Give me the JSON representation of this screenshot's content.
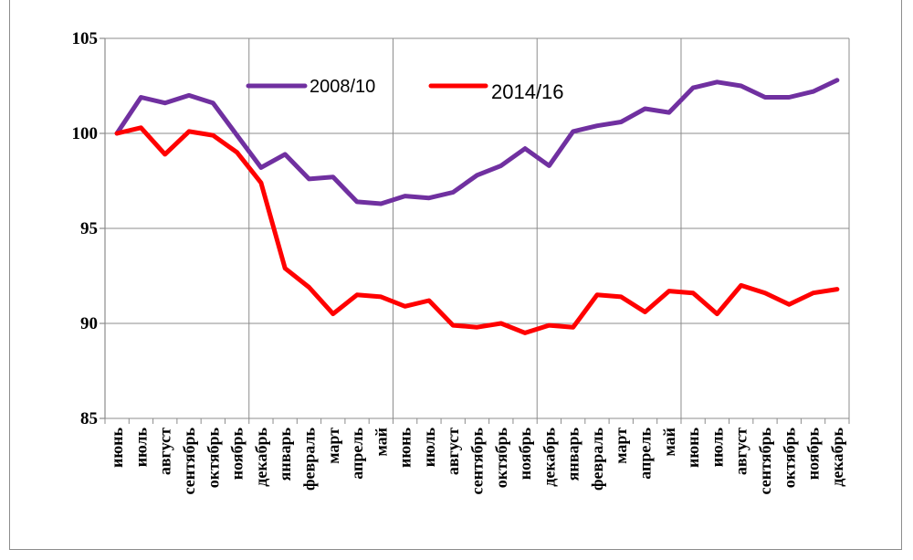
{
  "chart_data": {
    "type": "line",
    "title": "",
    "xlabel": "",
    "ylabel": "",
    "ylim": [
      85,
      105
    ],
    "yticks": [
      85,
      90,
      95,
      100,
      105
    ],
    "grid": true,
    "legend_position": "top",
    "categories": [
      "июнь",
      "июль",
      "август",
      "сентябрь",
      "октябрь",
      "ноябрь",
      "декабрь",
      "январь",
      "февраль",
      "март",
      "апрель",
      "май",
      "июнь",
      "июль",
      "август",
      "сентябрь",
      "октябрь",
      "ноябрь",
      "декабрь",
      "январь",
      "февраль",
      "март",
      "апрель",
      "май",
      "июнь",
      "июль",
      "август",
      "сентябрь",
      "октябрь",
      "ноябрь",
      "декабрь"
    ],
    "series": [
      {
        "name": "2008/10",
        "color": "#7030a0",
        "values": [
          100,
          101.9,
          101.6,
          102.0,
          101.6,
          99.9,
          98.2,
          98.9,
          97.6,
          97.7,
          96.4,
          96.3,
          96.7,
          96.6,
          96.9,
          97.8,
          98.3,
          99.2,
          98.3,
          100.1,
          100.4,
          100.6,
          101.3,
          101.1,
          102.4,
          102.7,
          102.5,
          101.9,
          101.9,
          102.2,
          102.8
        ]
      },
      {
        "name": "2014/16",
        "color": "#ff0000",
        "values": [
          100,
          100.3,
          98.9,
          100.1,
          99.9,
          99.0,
          97.4,
          92.9,
          91.9,
          90.5,
          91.5,
          91.4,
          90.9,
          91.2,
          89.9,
          89.8,
          90.0,
          89.5,
          89.9,
          89.8,
          91.5,
          91.4,
          90.6,
          91.7,
          91.6,
          90.5,
          92.0,
          91.6,
          91.0,
          91.6,
          91.8
        ]
      }
    ]
  }
}
